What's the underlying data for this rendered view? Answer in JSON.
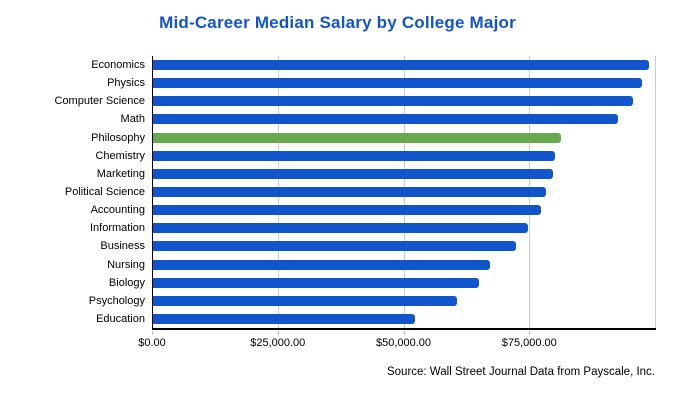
{
  "title": "Mid-Career Median Salary by College Major",
  "source_note": "Source: Wall Street Journal Data from Payscale, Inc.",
  "colors": {
    "title_text": "#1155cc",
    "bar": "#1155cc",
    "highlight_bar": "#6aa84f",
    "gridline": "#cccccc",
    "axis_line": "#000000",
    "label_text": "#000000"
  },
  "chart_data": {
    "type": "bar",
    "orientation": "horizontal",
    "title": "Mid-Career Median Salary by College Major",
    "categories": [
      "Economics",
      "Physics",
      "Computer Science",
      "Math",
      "Philosophy",
      "Chemistry",
      "Marketing",
      "Political Science",
      "Accounting",
      "Information",
      "Business",
      "Nursing",
      "Biology",
      "Psychology",
      "Education"
    ],
    "values": [
      98600,
      97300,
      95500,
      92400,
      81200,
      79900,
      79600,
      78200,
      77100,
      74600,
      72100,
      67000,
      64800,
      60400,
      52000
    ],
    "highlight_category": "Philosophy",
    "xlabel": "",
    "ylabel": "",
    "xlim": [
      0,
      100000
    ],
    "grid_interval": 25000,
    "grid": true,
    "legend": "none",
    "x_ticks": [
      {
        "value": 0,
        "label": "$0.00"
      },
      {
        "value": 25000,
        "label": "$25,000.00"
      },
      {
        "value": 50000,
        "label": "$50,000.00"
      },
      {
        "value": 75000,
        "label": "$75,000.00"
      }
    ],
    "annotation": "Source: Wall Street Journal Data from Payscale, Inc."
  }
}
